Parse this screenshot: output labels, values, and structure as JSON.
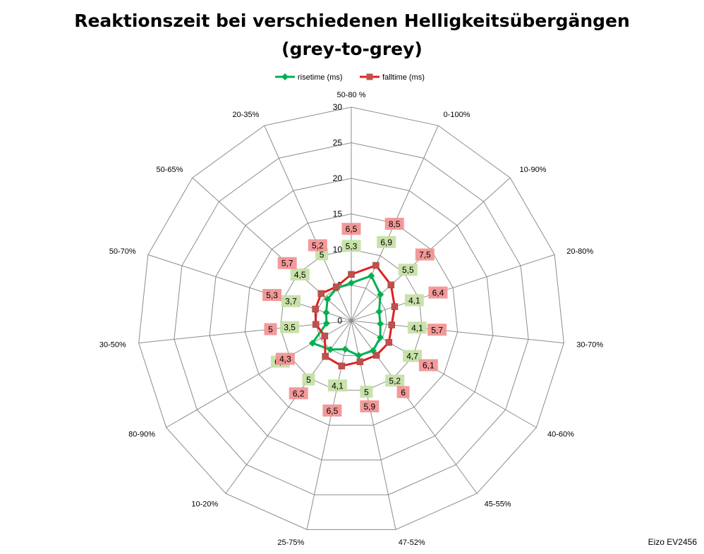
{
  "chart_data": {
    "type": "radar",
    "title_lines": [
      "Reaktionszeit bei verschiedenen Helligkeitsübergängen",
      "(grey-to-grey)"
    ],
    "categories": [
      "50-80 %",
      "0-100%",
      "10-90%",
      "20-80%",
      "30-70%",
      "40-60%",
      "45-55%",
      "47-52%",
      "25-75%",
      "10-20%",
      "80-90%",
      "30-50%",
      "50-70%",
      "50-65%",
      "20-35%"
    ],
    "tick_values": [
      0,
      5,
      10,
      15,
      20,
      25,
      30
    ],
    "tick_labels": [
      "0",
      "5",
      "10",
      "15",
      "20",
      "25",
      "30"
    ],
    "range": [
      0,
      30
    ],
    "legend_position": "top",
    "series": [
      {
        "name": "risetime (ms)",
        "color": "#00b050",
        "label_bg": "#c4e0a4",
        "marker": "diamond",
        "values": [
          5.3,
          6.9,
          5.5,
          4.1,
          4.1,
          4.7,
          5.2,
          5.0,
          4.1,
          5.0,
          6.3,
          3.5,
          3.7,
          4.5,
          5.0
        ],
        "labels": [
          "5,3",
          "6,9",
          "5,5",
          "4,1",
          "4,1",
          "4,7",
          "5,2",
          "5",
          "4,1",
          "5",
          "6,3",
          "3,5",
          "3,7",
          "4,5",
          "5"
        ]
      },
      {
        "name": "falltime (ms)",
        "color": "#e02020",
        "label_bg": "#f29090",
        "marker": "square",
        "values": [
          6.5,
          8.5,
          7.5,
          6.4,
          5.7,
          6.1,
          6.0,
          5.9,
          6.5,
          6.2,
          4.3,
          5.0,
          5.3,
          5.7,
          5.2
        ],
        "labels": [
          "6,5",
          "8,5",
          "7,5",
          "6,4",
          "5,7",
          "6,1",
          "6",
          "5,9",
          "6,5",
          "6,2",
          "4,3",
          "5",
          "5,3",
          "5,7",
          "5,2"
        ]
      }
    ]
  },
  "credit": "Eizo EV2456"
}
